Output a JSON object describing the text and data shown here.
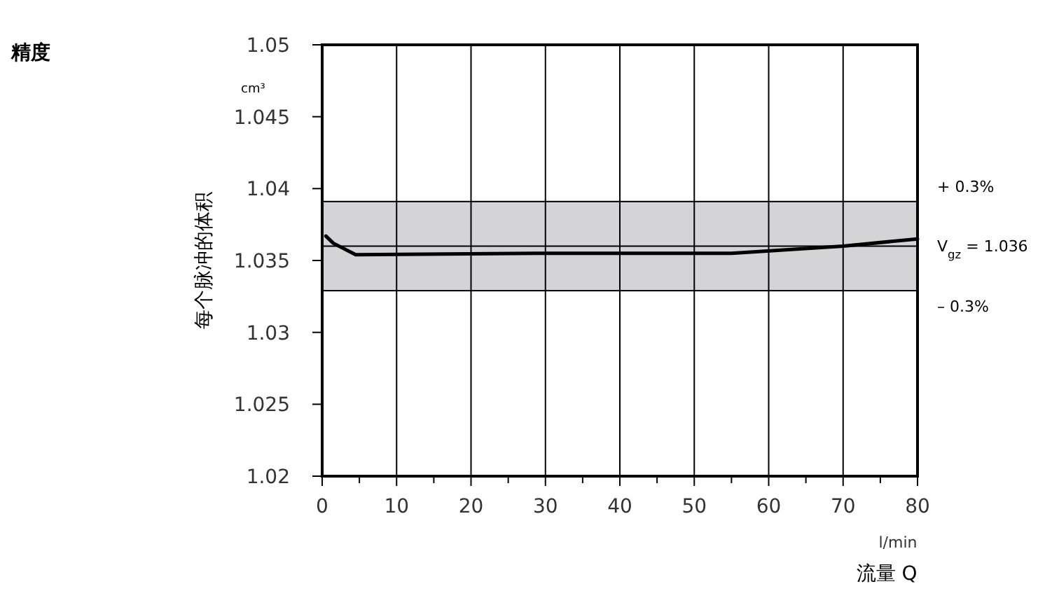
{
  "chart_data": {
    "type": "line",
    "title": "精度",
    "xlabel": "流量 Q",
    "ylabel": "每个脉冲的体积",
    "x": [
      0.5,
      1.5,
      4.5,
      30,
      55,
      70,
      80
    ],
    "series": [
      {
        "color": "#000000",
        "values": [
          1.0367,
          1.0362,
          1.0354,
          1.0355,
          1.0355,
          1.036,
          1.0365
        ]
      }
    ],
    "xlim": [
      0,
      80
    ],
    "xticks": [
      0,
      {
        "value": 5,
        "label": null
      },
      10,
      {
        "value": 15,
        "label": null
      },
      20,
      {
        "value": 25,
        "label": null
      },
      30,
      {
        "value": 35,
        "label": null
      },
      40,
      {
        "value": 45,
        "label": null
      },
      50,
      {
        "value": 55,
        "label": null
      },
      60,
      {
        "value": 65,
        "label": null
      },
      70,
      {
        "value": 75,
        "label": null
      },
      80
    ],
    "ylim": [
      1.02,
      1.05
    ],
    "yticks": [
      1.02,
      1.025,
      1.03,
      1.035,
      1.04,
      1.045,
      1.05
    ],
    "grid": "x",
    "marker": "none",
    "line_style": "solid",
    "bands": [
      {
        "axis": "y",
        "from": 1.0329,
        "to": 1.0391,
        "color": "#d4d4d6"
      }
    ],
    "ref_lines": [
      {
        "axis": "y",
        "value": 1.036,
        "label": "V$_{gz}$ = 1.036"
      }
    ],
    "annotations": [
      "cm³",
      "l/min",
      {
        "text": "+ 0.3%",
        "x": 80,
        "y": 1.0391
      },
      {
        "text": "– 0.3%",
        "x": 80,
        "y": 1.0329
      }
    ]
  }
}
